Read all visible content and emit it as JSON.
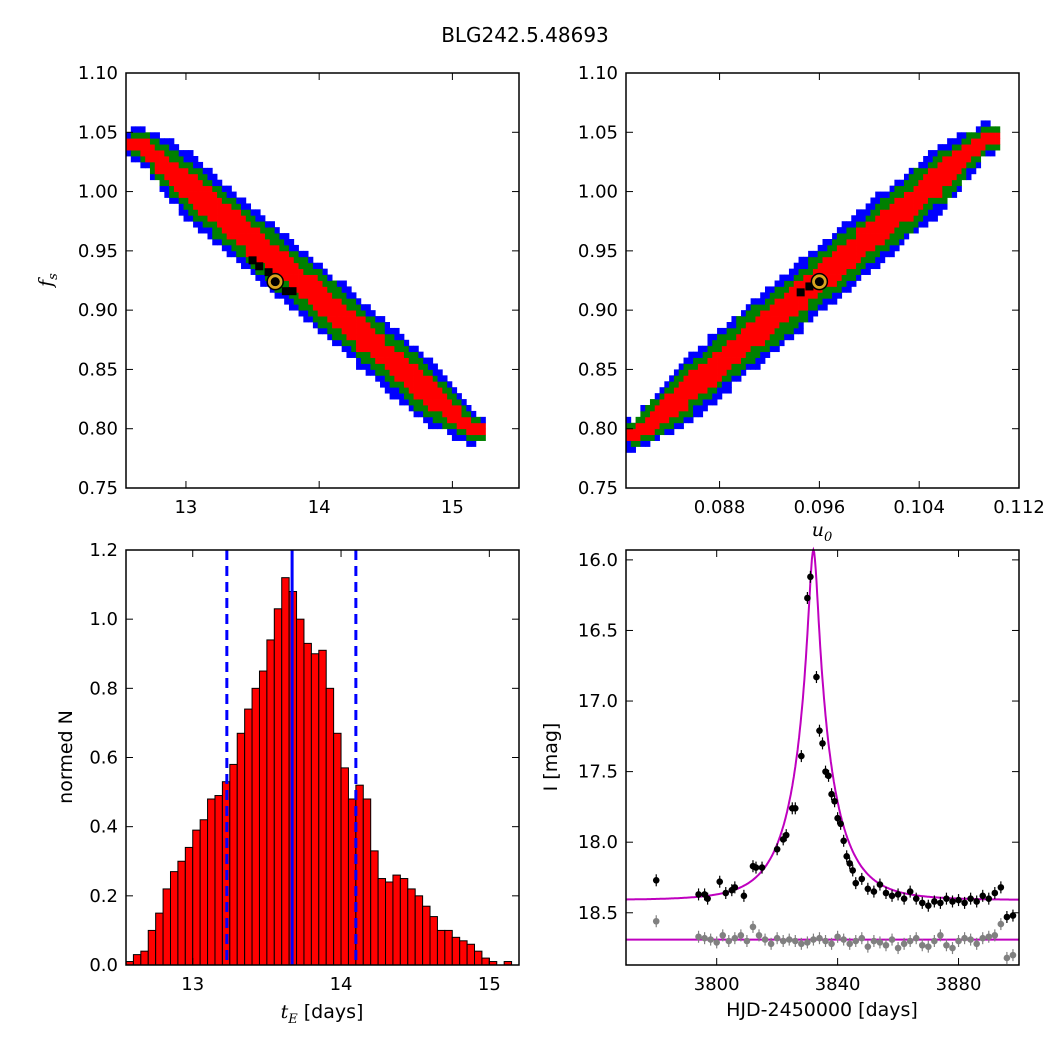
{
  "figure": {
    "title": "BLG242.5.48693"
  },
  "colors": {
    "sigma1": "#ff0000",
    "sigma2": "#008000",
    "sigma3": "#0000ff",
    "best_fit_marker": "#daa520",
    "hist_fill": "#ff0000",
    "hist_line": "#0000ff",
    "model_curve": "#bf00bf",
    "data_points": "#000000",
    "residuals": "#808080"
  },
  "chart_data": [
    {
      "id": "fs_vs_tE",
      "type": "heatmap",
      "title": "",
      "xlabel": "",
      "ylabel": "f_s",
      "xlim": [
        12.55,
        15.5
      ],
      "ylim": [
        0.75,
        1.1
      ],
      "xticks": [
        "13",
        "14",
        "15"
      ],
      "yticks": [
        "0.75",
        "0.80",
        "0.85",
        "0.90",
        "0.95",
        "1.00",
        "1.05",
        "1.10"
      ],
      "band": {
        "from": [
          12.65,
          1.04
        ],
        "to": [
          15.15,
          0.8
        ],
        "widths_y": {
          "red": 0.013,
          "green": 0.022,
          "blue": 0.029
        }
      },
      "best_fit": {
        "x": 13.67,
        "y": 0.924
      },
      "black_pixels": [
        [
          13.55,
          0.937
        ],
        [
          13.62,
          0.932
        ],
        [
          13.75,
          0.916
        ],
        [
          13.8,
          0.916
        ],
        [
          13.5,
          0.942
        ]
      ]
    },
    {
      "id": "fs_vs_u0",
      "type": "heatmap",
      "title": "",
      "xlabel": "u_0",
      "ylabel": "",
      "xlim": [
        0.0805,
        0.112
      ],
      "ylim": [
        0.75,
        1.1
      ],
      "xticks": [
        "0.088",
        "0.096",
        "0.104",
        "0.112"
      ],
      "yticks": [
        "0.75",
        "0.80",
        "0.85",
        "0.90",
        "0.95",
        "1.00",
        "1.05",
        "1.10"
      ],
      "band": {
        "from": [
          0.0812,
          0.795
        ],
        "to": [
          0.1095,
          1.045
        ],
        "widths_y": {
          "red": 0.013,
          "green": 0.022,
          "blue": 0.029
        }
      },
      "best_fit": {
        "x": 0.096,
        "y": 0.924
      },
      "black_pixels": [
        [
          0.0945,
          0.915
        ],
        [
          0.0952,
          0.92
        ]
      ]
    },
    {
      "id": "tE_histogram",
      "type": "bar",
      "title": "",
      "xlabel": "t_E [days]",
      "ylabel": "normed N",
      "xlim": [
        12.55,
        15.2
      ],
      "ylim": [
        0.0,
        1.2
      ],
      "xticks": [
        "13",
        "14",
        "15"
      ],
      "yticks": [
        "0.0",
        "0.2",
        "0.4",
        "0.6",
        "0.8",
        "1.0",
        "1.2"
      ],
      "bins": {
        "start": 12.55,
        "width": 0.05
      },
      "values": [
        0.01,
        0.03,
        0.04,
        0.1,
        0.15,
        0.22,
        0.27,
        0.3,
        0.34,
        0.39,
        0.42,
        0.48,
        0.49,
        0.53,
        0.58,
        0.67,
        0.74,
        0.8,
        0.85,
        0.94,
        1.03,
        1.12,
        1.08,
        1.0,
        0.93,
        0.9,
        0.91,
        0.8,
        0.67,
        0.57,
        0.48,
        0.52,
        0.48,
        0.33,
        0.25,
        0.24,
        0.26,
        0.25,
        0.22,
        0.2,
        0.17,
        0.14,
        0.1,
        0.1,
        0.08,
        0.07,
        0.06,
        0.04,
        0.02,
        0.01,
        0.0,
        0.01
      ],
      "median_line": 13.67,
      "sigma_lines": [
        13.23,
        14.1
      ]
    },
    {
      "id": "lightcurve",
      "type": "scatter",
      "title": "",
      "xlabel": "HJD-2450000 [days]",
      "ylabel": "I [mag]",
      "xlim": [
        3770,
        3900
      ],
      "ylim": [
        18.87,
        15.93
      ],
      "xticks": [
        "3800",
        "3840",
        "3880"
      ],
      "yticks": [
        "16.0",
        "16.5",
        "17.0",
        "17.5",
        "18.0",
        "18.5"
      ],
      "model": {
        "baseline": 18.41,
        "peak_x": 3832.0,
        "peak_mag": 15.93
      },
      "residual_baseline": 18.69,
      "series": [
        {
          "x": [
            3780,
            3794,
            3796,
            3797,
            3801,
            3803,
            3805,
            3806,
            3809,
            3812,
            3813,
            3815,
            3820,
            3822,
            3823,
            3825,
            3826,
            3828,
            3830,
            3831,
            3833,
            3834,
            3835,
            3836,
            3837,
            3838,
            3839,
            3840,
            3841,
            3842,
            3843,
            3844,
            3845,
            3846,
            3848,
            3850,
            3852,
            3854,
            3856,
            3858,
            3860,
            3862,
            3864,
            3866,
            3868,
            3870,
            3872,
            3874,
            3876,
            3878,
            3880,
            3882,
            3884,
            3886,
            3888,
            3890,
            3892,
            3894,
            3896,
            3898
          ],
          "y": [
            18.27,
            18.37,
            18.37,
            18.4,
            18.28,
            18.36,
            18.34,
            18.32,
            18.38,
            18.17,
            18.18,
            18.18,
            18.05,
            17.98,
            17.95,
            17.76,
            17.76,
            17.39,
            16.27,
            16.12,
            16.83,
            17.21,
            17.3,
            17.5,
            17.53,
            17.66,
            17.71,
            17.83,
            17.87,
            17.99,
            18.1,
            18.15,
            18.2,
            18.29,
            18.26,
            18.33,
            18.35,
            18.3,
            18.36,
            18.38,
            18.37,
            18.4,
            18.35,
            18.4,
            18.43,
            18.45,
            18.42,
            18.43,
            18.4,
            18.42,
            18.41,
            18.43,
            18.4,
            18.42,
            18.38,
            18.4,
            18.36,
            18.32,
            18.53,
            18.52
          ]
        },
        {
          "x": [
            3780,
            3794,
            3796,
            3798,
            3800,
            3802,
            3804,
            3806,
            3808,
            3810,
            3812,
            3814,
            3816,
            3818,
            3820,
            3822,
            3824,
            3826,
            3828,
            3830,
            3832,
            3834,
            3836,
            3838,
            3840,
            3842,
            3844,
            3846,
            3848,
            3850,
            3852,
            3854,
            3856,
            3858,
            3860,
            3862,
            3864,
            3866,
            3868,
            3870,
            3872,
            3874,
            3876,
            3878,
            3880,
            3882,
            3884,
            3886,
            3888,
            3890,
            3892,
            3894,
            3896,
            3898
          ],
          "y": [
            18.56,
            18.67,
            18.68,
            18.69,
            18.71,
            18.66,
            18.7,
            18.68,
            18.66,
            18.7,
            18.6,
            18.66,
            18.69,
            18.72,
            18.68,
            18.7,
            18.69,
            18.7,
            18.72,
            18.71,
            18.69,
            18.68,
            18.7,
            18.72,
            18.67,
            18.69,
            18.72,
            18.7,
            18.68,
            18.74,
            18.7,
            18.71,
            18.73,
            18.69,
            18.75,
            18.72,
            18.7,
            18.68,
            18.73,
            18.74,
            18.7,
            18.66,
            18.73,
            18.75,
            18.7,
            18.68,
            18.69,
            18.72,
            18.68,
            18.67,
            18.66,
            18.58,
            18.82,
            18.8
          ]
        }
      ]
    }
  ]
}
